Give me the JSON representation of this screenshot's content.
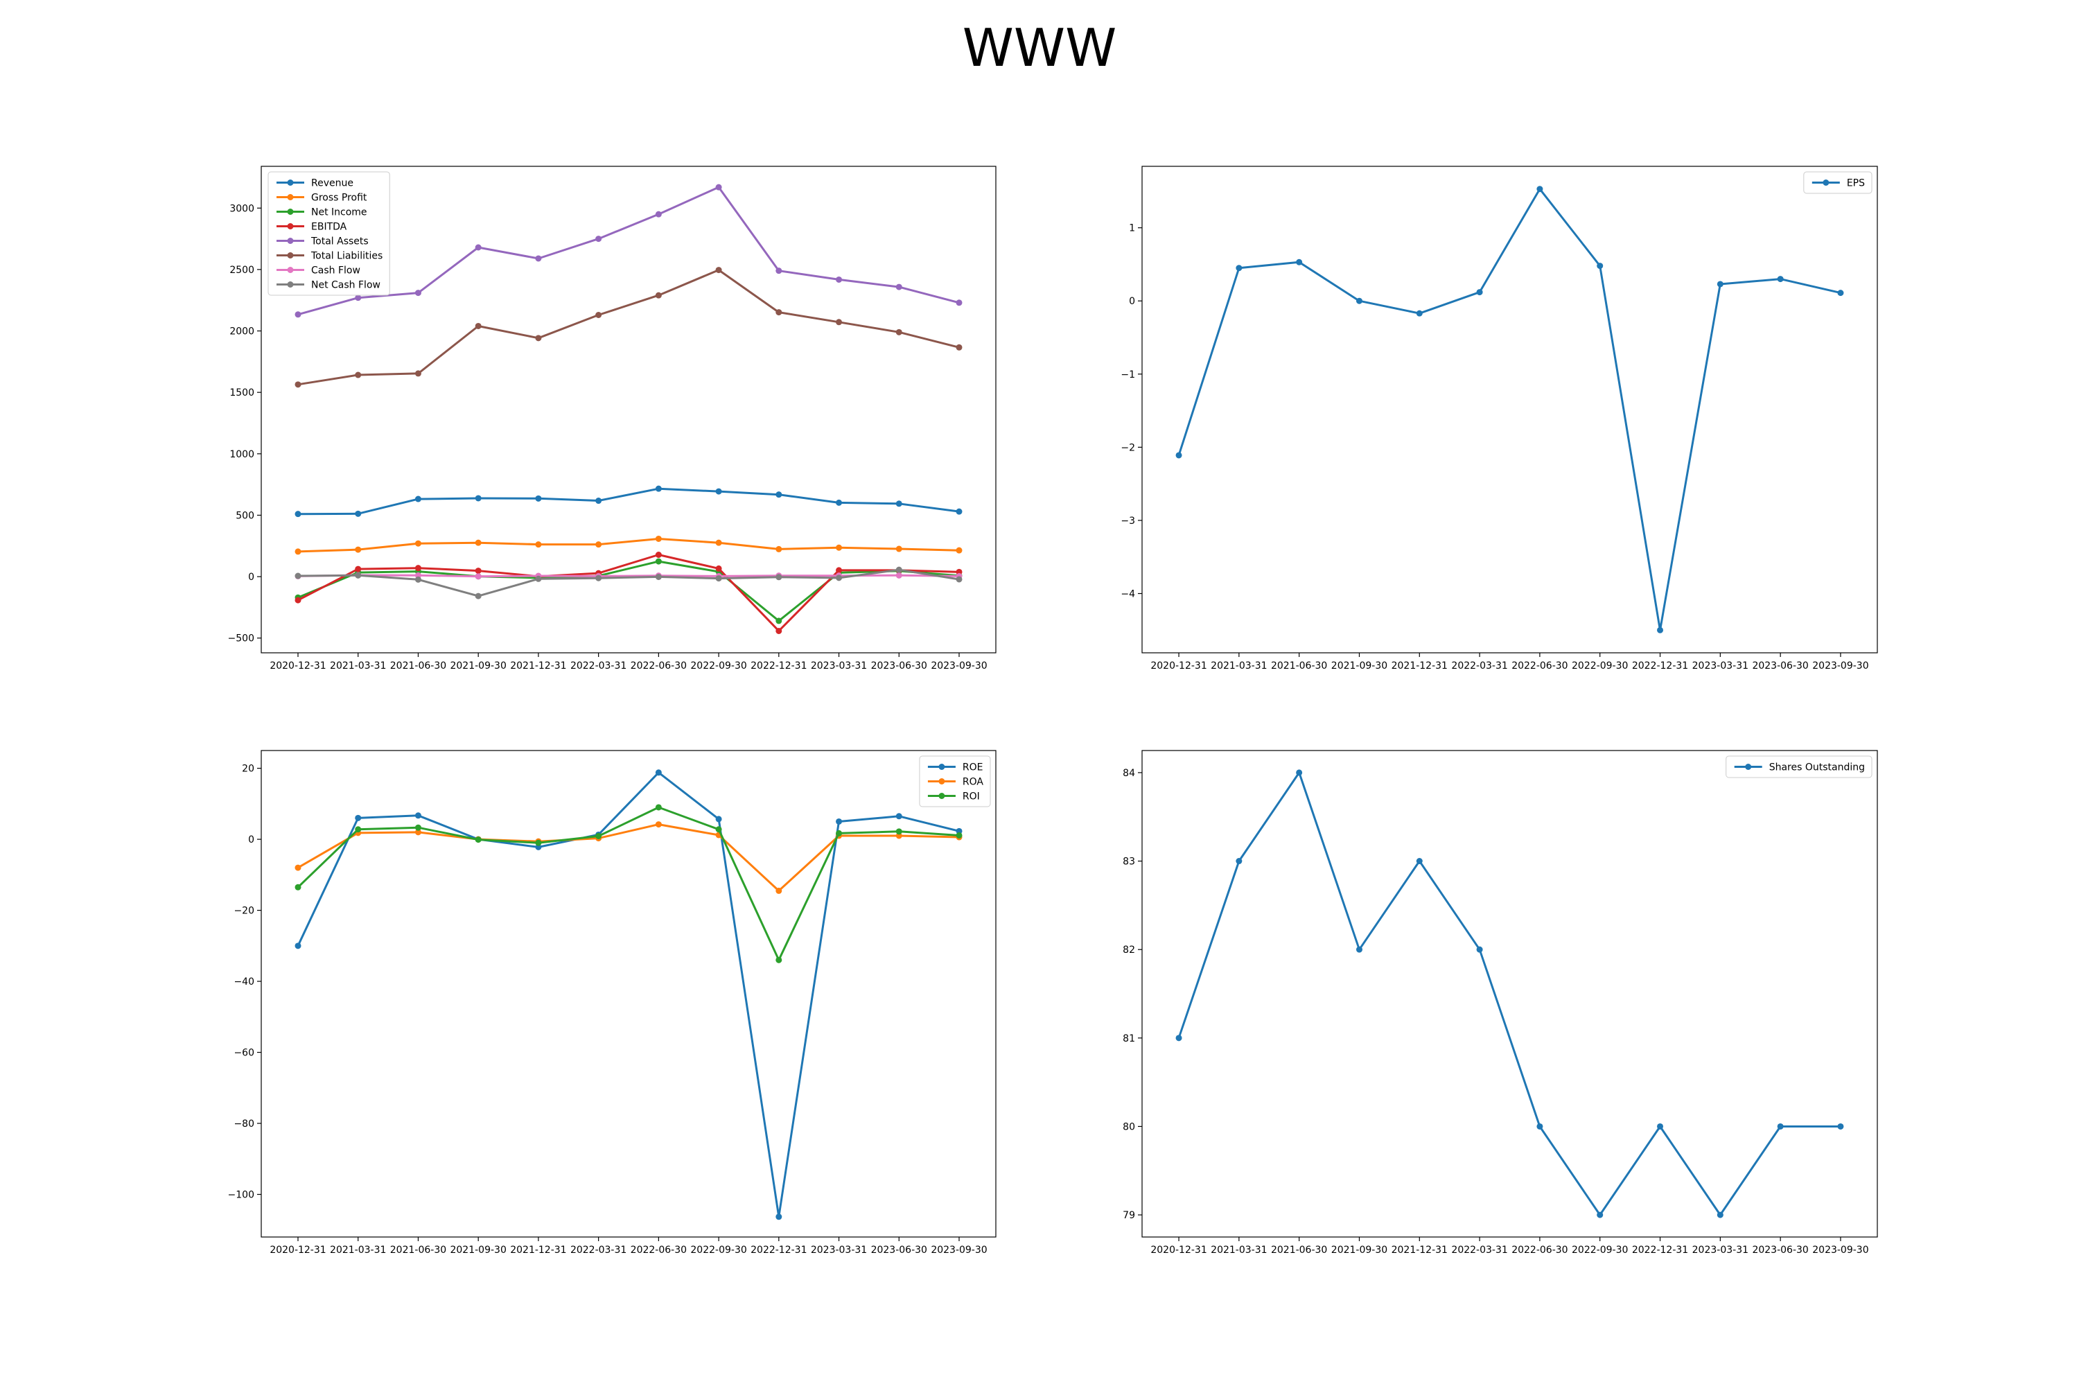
{
  "figure": {
    "title": "WWW",
    "background": "#ffffff"
  },
  "chart_data": [
    {
      "type": "line",
      "categories": [
        "2020-12-31",
        "2021-03-31",
        "2021-06-30",
        "2021-09-30",
        "2021-12-31",
        "2022-03-31",
        "2022-06-30",
        "2022-09-30",
        "2022-12-31",
        "2023-03-31",
        "2023-06-30",
        "2023-09-30"
      ],
      "ylim": [
        -620,
        3340
      ],
      "yticks": [
        -500,
        0,
        500,
        1000,
        1500,
        2000,
        2500,
        3000
      ],
      "ytick_labels": [
        "−500",
        "0",
        "500",
        "1000",
        "1500",
        "2000",
        "2500",
        "3000"
      ],
      "grid": false,
      "legend": "top-left",
      "series": [
        {
          "name": "Revenue",
          "color": "#1f77b4",
          "values": [
            510,
            512,
            632,
            638,
            636,
            618,
            716,
            694,
            668,
            602,
            594,
            530
          ]
        },
        {
          "name": "Gross Profit",
          "color": "#ff7f0e",
          "values": [
            204,
            220,
            270,
            276,
            262,
            262,
            308,
            276,
            224,
            236,
            226,
            214
          ]
        },
        {
          "name": "Net Income",
          "color": "#2ca02c",
          "values": [
            -170,
            34,
            42,
            2,
            -10,
            6,
            124,
            40,
            -360,
            32,
            46,
            8
          ]
        },
        {
          "name": "EBITDA",
          "color": "#d62728",
          "values": [
            -192,
            62,
            70,
            48,
            2,
            28,
            178,
            66,
            -442,
            52,
            52,
            38
          ]
        },
        {
          "name": "Total Assets",
          "color": "#9467bd",
          "values": [
            2134,
            2270,
            2310,
            2680,
            2590,
            2750,
            2950,
            3170,
            2490,
            2418,
            2358,
            2230
          ]
        },
        {
          "name": "Total Liabilities",
          "color": "#8c564b",
          "values": [
            1564,
            1642,
            1654,
            2040,
            1942,
            2130,
            2290,
            2496,
            2152,
            2072,
            1990,
            1866
          ]
        },
        {
          "name": "Cash Flow",
          "color": "#e377c2",
          "values": [
            4,
            12,
            10,
            2,
            6,
            4,
            8,
            4,
            8,
            8,
            10,
            4
          ]
        },
        {
          "name": "Net Cash Flow",
          "color": "#7f7f7f",
          "values": [
            6,
            10,
            -24,
            -158,
            -18,
            -12,
            -2,
            -14,
            -4,
            -10,
            56,
            -22
          ]
        }
      ]
    },
    {
      "type": "line",
      "categories": [
        "2020-12-31",
        "2021-03-31",
        "2021-06-30",
        "2021-09-30",
        "2021-12-31",
        "2022-03-31",
        "2022-06-30",
        "2022-09-30",
        "2022-12-31",
        "2023-03-31",
        "2023-06-30",
        "2023-09-30"
      ],
      "ylim": [
        -4.81,
        1.84
      ],
      "yticks": [
        -4,
        -3,
        -2,
        -1,
        0,
        1
      ],
      "ytick_labels": [
        "−4",
        "−3",
        "−2",
        "−1",
        "0",
        "1"
      ],
      "grid": false,
      "legend": "top-right",
      "series": [
        {
          "name": "EPS",
          "color": "#1f77b4",
          "values": [
            -2.11,
            0.45,
            0.53,
            0.0,
            -0.17,
            0.12,
            1.53,
            0.48,
            -4.5,
            0.23,
            0.3,
            0.11
          ]
        }
      ]
    },
    {
      "type": "line",
      "categories": [
        "2020-12-31",
        "2021-03-31",
        "2021-06-30",
        "2021-09-30",
        "2021-12-31",
        "2022-03-31",
        "2022-06-30",
        "2022-09-30",
        "2022-12-31",
        "2023-03-31",
        "2023-06-30",
        "2023-09-30"
      ],
      "ylim": [
        -112.0,
        25.0
      ],
      "yticks": [
        -100,
        -80,
        -60,
        -40,
        -20,
        0,
        20
      ],
      "ytick_labels": [
        "−100",
        "−80",
        "−60",
        "−40",
        "−20",
        "0",
        "20"
      ],
      "grid": false,
      "legend": "top-right",
      "series": [
        {
          "name": "ROE",
          "color": "#1f77b4",
          "values": [
            -30.0,
            6.0,
            6.7,
            0.0,
            -2.2,
            1.3,
            18.8,
            5.7,
            -106.3,
            5.0,
            6.5,
            2.3
          ]
        },
        {
          "name": "ROA",
          "color": "#ff7f0e",
          "values": [
            -8.0,
            1.8,
            2.0,
            0.0,
            -0.6,
            0.3,
            4.2,
            1.2,
            -14.5,
            1.0,
            1.0,
            0.6
          ]
        },
        {
          "name": "ROI",
          "color": "#2ca02c",
          "values": [
            -13.5,
            2.8,
            3.3,
            -0.1,
            -1.0,
            0.9,
            9.0,
            2.8,
            -34.0,
            1.7,
            2.2,
            1.1
          ]
        }
      ]
    },
    {
      "type": "line",
      "categories": [
        "2020-12-31",
        "2021-03-31",
        "2021-06-30",
        "2021-09-30",
        "2021-12-31",
        "2022-03-31",
        "2022-06-30",
        "2022-09-30",
        "2022-12-31",
        "2023-03-31",
        "2023-06-30",
        "2023-09-30"
      ],
      "ylim": [
        78.75,
        84.25
      ],
      "yticks": [
        79,
        80,
        81,
        82,
        83,
        84
      ],
      "ytick_labels": [
        "79",
        "80",
        "81",
        "82",
        "83",
        "84"
      ],
      "grid": false,
      "legend": "top-right",
      "series": [
        {
          "name": "Shares Outstanding",
          "color": "#1f77b4",
          "values": [
            81,
            83,
            84,
            82,
            83,
            82,
            80,
            79,
            80,
            79,
            80,
            80
          ]
        }
      ]
    }
  ]
}
